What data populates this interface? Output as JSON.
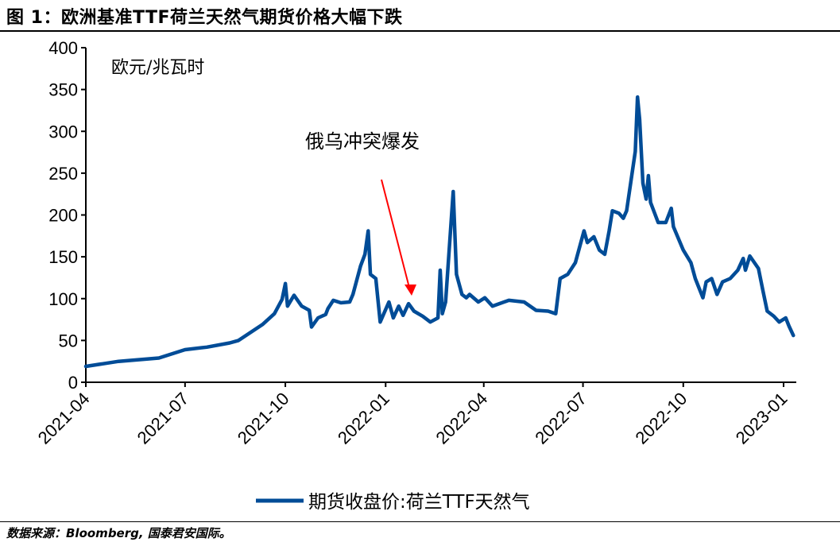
{
  "title": "图 1：欧洲基准TTF荷兰天然气期货价格大幅下跌",
  "source": "数据来源：Bloomberg, 国泰君安国际。",
  "chart_data": {
    "type": "line",
    "unit_label": "欧元/兆瓦时",
    "annotation": {
      "text": "俄乌冲突爆发",
      "color": "#ff0000",
      "points_to": "2022-02-04"
    },
    "ylim": [
      0,
      400
    ],
    "yticks": [
      0,
      50,
      100,
      150,
      200,
      250,
      300,
      350,
      400
    ],
    "xlim": [
      "2021-04-01",
      "2023-01-12"
    ],
    "xticks": [
      "2021-04",
      "2021-07",
      "2021-10",
      "2022-01",
      "2022-04",
      "2022-07",
      "2022-10",
      "2023-01"
    ],
    "grid": false,
    "legend_position": "bottom",
    "series": [
      {
        "name": "期货收盘价:荷兰TTF天然气",
        "color": "#004C97",
        "points": [
          [
            "2021-04-01",
            19
          ],
          [
            "2021-05-01",
            25
          ],
          [
            "2021-06-07",
            29
          ],
          [
            "2021-07-01",
            39
          ],
          [
            "2021-07-21",
            42
          ],
          [
            "2021-08-11",
            47
          ],
          [
            "2021-08-19",
            50
          ],
          [
            "2021-09-10",
            69
          ],
          [
            "2021-09-21",
            82
          ],
          [
            "2021-09-28",
            99
          ],
          [
            "2021-10-01",
            118
          ],
          [
            "2021-10-03",
            91
          ],
          [
            "2021-10-09",
            104
          ],
          [
            "2021-10-16",
            91
          ],
          [
            "2021-10-23",
            86
          ],
          [
            "2021-10-25",
            66
          ],
          [
            "2021-10-31",
            77
          ],
          [
            "2021-11-07",
            81
          ],
          [
            "2021-11-09",
            88
          ],
          [
            "2021-11-14",
            98
          ],
          [
            "2021-11-21",
            95
          ],
          [
            "2021-11-29",
            96
          ],
          [
            "2021-12-02",
            105
          ],
          [
            "2021-12-09",
            139
          ],
          [
            "2021-12-13",
            153
          ],
          [
            "2021-12-16",
            181
          ],
          [
            "2021-12-18",
            129
          ],
          [
            "2021-12-23",
            124
          ],
          [
            "2021-12-27",
            72
          ],
          [
            "2022-01-04",
            96
          ],
          [
            "2022-01-08",
            77
          ],
          [
            "2022-01-13",
            91
          ],
          [
            "2022-01-17",
            80
          ],
          [
            "2022-01-22",
            94
          ],
          [
            "2022-01-27",
            85
          ],
          [
            "2022-02-04",
            79
          ],
          [
            "2022-02-11",
            72
          ],
          [
            "2022-02-18",
            77
          ],
          [
            "2022-02-20",
            134
          ],
          [
            "2022-02-22",
            82
          ],
          [
            "2022-02-25",
            96
          ],
          [
            "2022-03-02",
            191
          ],
          [
            "2022-03-04",
            228
          ],
          [
            "2022-03-07",
            129
          ],
          [
            "2022-03-12",
            105
          ],
          [
            "2022-03-16",
            101
          ],
          [
            "2022-03-19",
            105
          ],
          [
            "2022-03-27",
            96
          ],
          [
            "2022-04-02",
            101
          ],
          [
            "2022-04-09",
            91
          ],
          [
            "2022-04-24",
            98
          ],
          [
            "2022-05-08",
            96
          ],
          [
            "2022-05-19",
            86
          ],
          [
            "2022-05-30",
            85
          ],
          [
            "2022-06-06",
            82
          ],
          [
            "2022-06-10",
            124
          ],
          [
            "2022-06-17",
            129
          ],
          [
            "2022-06-24",
            143
          ],
          [
            "2022-07-02",
            181
          ],
          [
            "2022-07-05",
            167
          ],
          [
            "2022-07-11",
            174
          ],
          [
            "2022-07-16",
            158
          ],
          [
            "2022-07-21",
            153
          ],
          [
            "2022-07-25",
            181
          ],
          [
            "2022-07-28",
            205
          ],
          [
            "2022-08-03",
            202
          ],
          [
            "2022-08-07",
            196
          ],
          [
            "2022-08-10",
            205
          ],
          [
            "2022-08-18",
            276
          ],
          [
            "2022-08-20",
            341
          ],
          [
            "2022-08-22",
            314
          ],
          [
            "2022-08-25",
            238
          ],
          [
            "2022-08-28",
            219
          ],
          [
            "2022-08-30",
            247
          ],
          [
            "2022-09-01",
            215
          ],
          [
            "2022-09-08",
            191
          ],
          [
            "2022-09-15",
            191
          ],
          [
            "2022-09-20",
            208
          ],
          [
            "2022-09-22",
            186
          ],
          [
            "2022-10-01",
            158
          ],
          [
            "2022-10-08",
            143
          ],
          [
            "2022-10-12",
            124
          ],
          [
            "2022-10-19",
            101
          ],
          [
            "2022-10-22",
            120
          ],
          [
            "2022-10-27",
            124
          ],
          [
            "2022-11-01",
            105
          ],
          [
            "2022-11-06",
            120
          ],
          [
            "2022-11-13",
            124
          ],
          [
            "2022-11-20",
            134
          ],
          [
            "2022-11-25",
            148
          ],
          [
            "2022-11-27",
            134
          ],
          [
            "2022-12-01",
            151
          ],
          [
            "2022-12-09",
            136
          ],
          [
            "2022-12-13",
            110
          ],
          [
            "2022-12-17",
            85
          ],
          [
            "2022-12-23",
            79
          ],
          [
            "2022-12-28",
            72
          ],
          [
            "2023-01-03",
            77
          ],
          [
            "2023-01-06",
            67
          ],
          [
            "2023-01-10",
            56
          ]
        ]
      }
    ]
  }
}
